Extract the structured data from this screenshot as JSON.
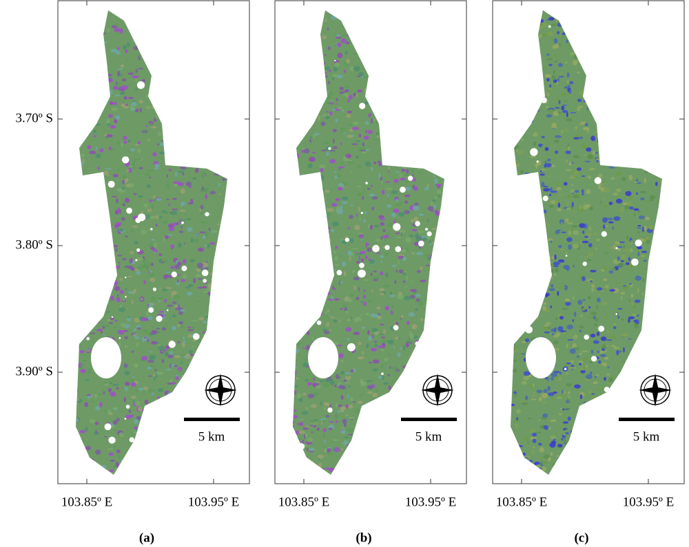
{
  "y_labels": [
    "3.70º S",
    "3.80º S",
    "3.90º S"
  ],
  "panels": [
    {
      "label": "(a)",
      "x_labels": [
        "103.85º E",
        "103.95º E"
      ],
      "scale_bar": "5 km"
    },
    {
      "label": "(b)",
      "x_labels": [
        "103.85º E",
        "103.95º E"
      ],
      "scale_bar": "5 km"
    },
    {
      "label": "(c)",
      "x_labels": [
        "103.85º E",
        "103.95º E"
      ],
      "scale_bar": "5 km"
    }
  ]
}
